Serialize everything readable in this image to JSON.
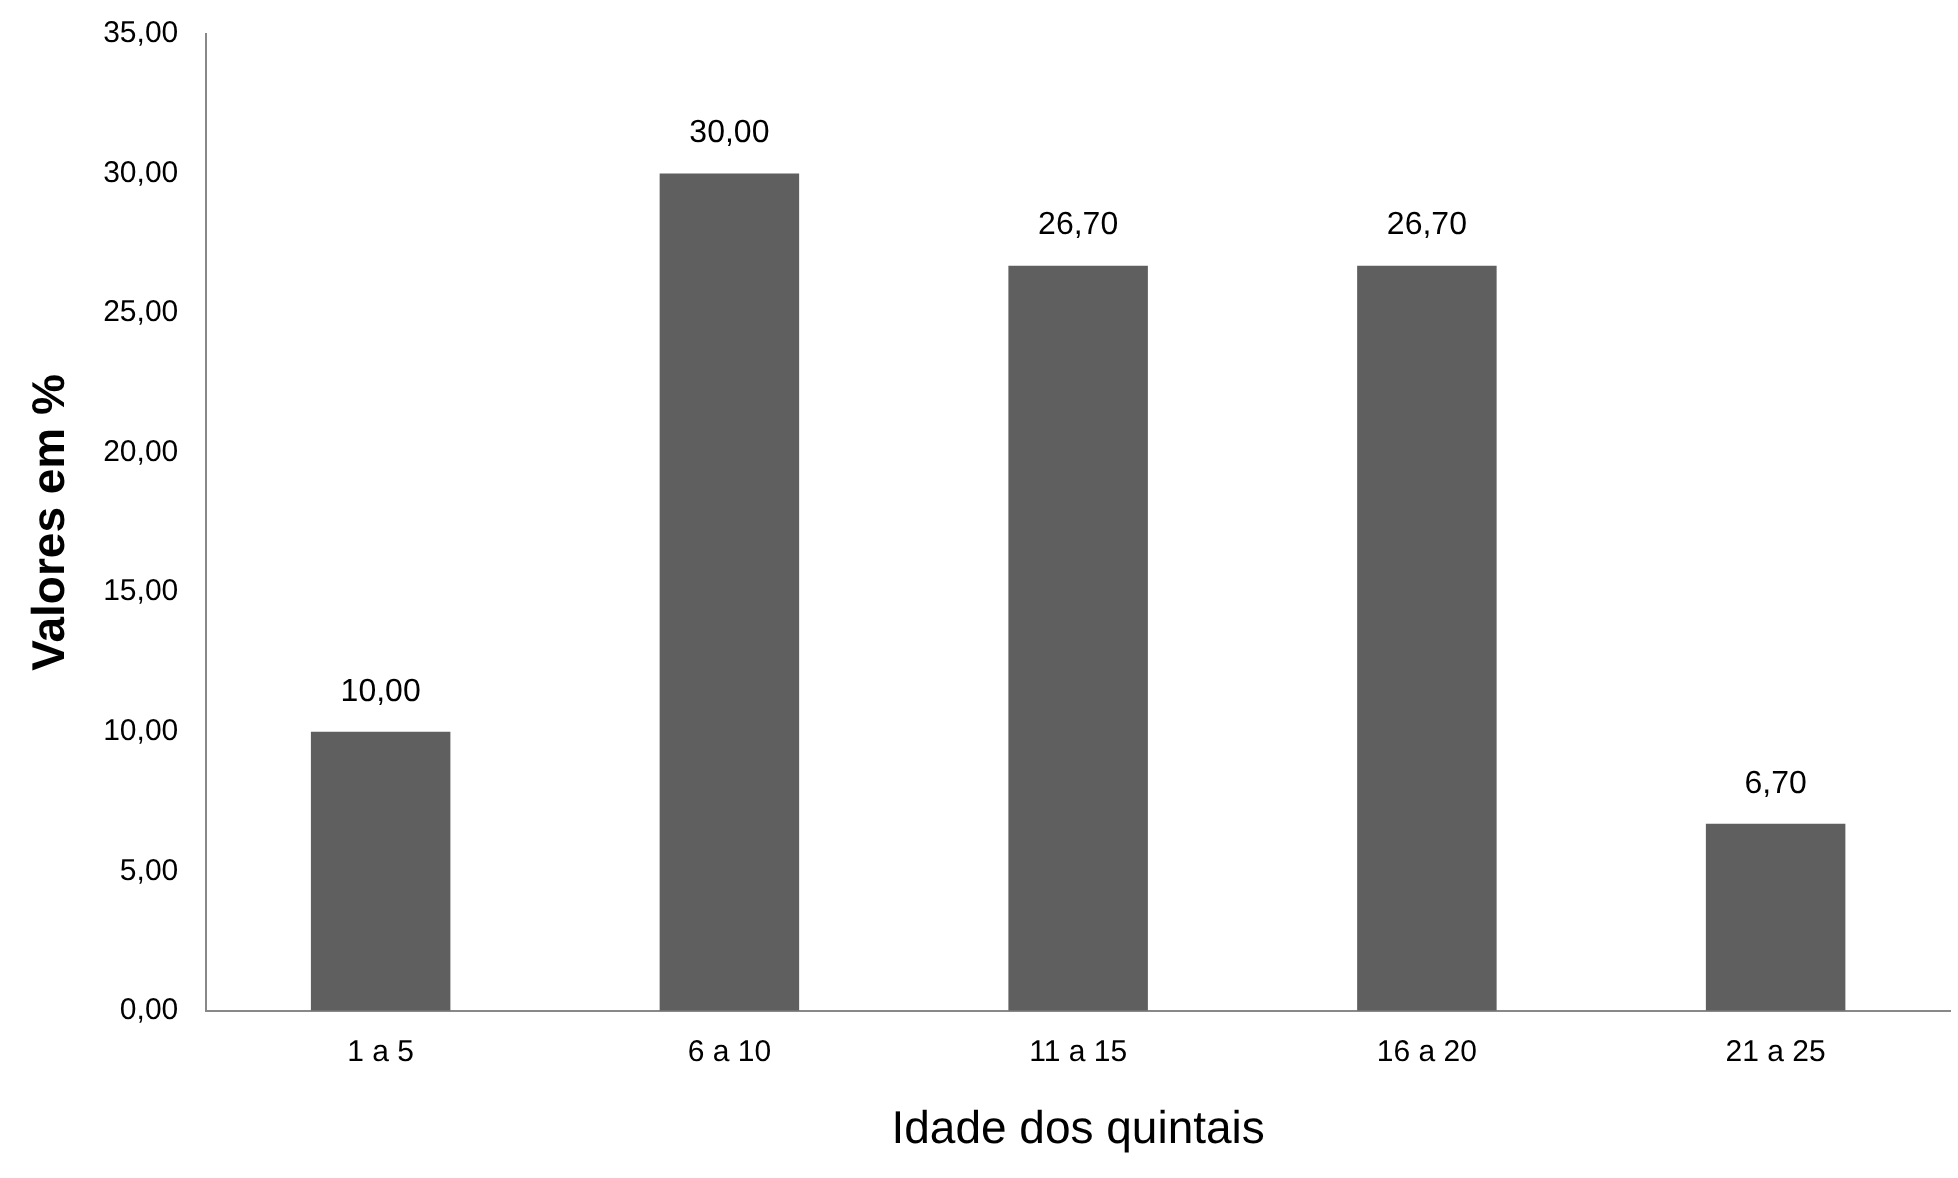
{
  "chart_data": {
    "type": "bar",
    "xlabel": "Idade dos quintais",
    "ylabel": "Valores em %",
    "categories": [
      "1 a 5",
      "6 a 10",
      "11 a 15",
      "16 a 20",
      "21 a 25"
    ],
    "values": [
      10,
      30,
      26.7,
      26.7,
      6.7
    ],
    "color": "#5f5f5f",
    "value_labels": [
      "10,00",
      "30,00",
      "26,70",
      "26,70",
      "6,70"
    ],
    "ylim": [
      0,
      35
    ],
    "yticks": [
      {
        "value": 0,
        "label": "0,00"
      },
      {
        "value": 5,
        "label": "5,00"
      },
      {
        "value": 10,
        "label": "10,00"
      },
      {
        "value": 15,
        "label": "15,00"
      },
      {
        "value": 20,
        "label": "20,00"
      },
      {
        "value": 25,
        "label": "25,00"
      },
      {
        "value": 30,
        "label": "30,00"
      },
      {
        "value": 35,
        "label": "35,00"
      }
    ],
    "grid": false,
    "legend": false
  }
}
